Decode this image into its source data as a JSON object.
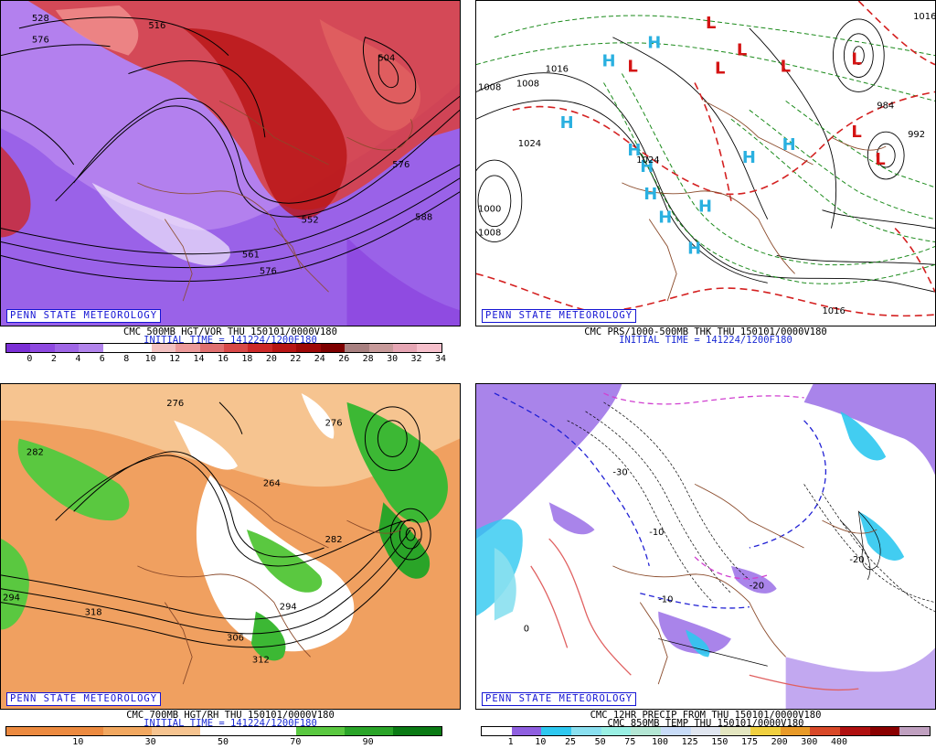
{
  "credit": "PENN STATE METEOROLOGY",
  "panels": [
    {
      "caption_1": "CMC 500MB HGT/VOR THU 150101/0000V180",
      "caption_2": "INITIAL TIME = 141224/1200F180",
      "colorbar": {
        "colors": [
          "#7b2fd6",
          "#8e49e0",
          "#9f66e6",
          "#b284ec",
          "#ffffff",
          "#ffffff",
          "#f2c1c1",
          "#ec9a9a",
          "#e07070",
          "#d84848",
          "#cc2828",
          "#b81414",
          "#9e0808",
          "#7e0000",
          "#a88080",
          "#c79a9a",
          "#e6a6b4",
          "#f6c0cc"
        ],
        "labels": [
          "0",
          "2",
          "4",
          "6",
          "8",
          "10",
          "12",
          "14",
          "16",
          "18",
          "20",
          "22",
          "24",
          "26",
          "28",
          "30",
          "32",
          "34"
        ]
      },
      "contour_labels": [
        "528",
        "576",
        "516",
        "504",
        "576",
        "552",
        "561",
        "576",
        "588"
      ]
    },
    {
      "caption_1": "CMC PRS/1000-500MB THK THU 150101/0000V180",
      "caption_2": "INITIAL TIME = 141224/1200F180",
      "pressure_centers": [
        "H",
        "H",
        "H",
        "H",
        "H",
        "H",
        "H",
        "H",
        "H",
        "H",
        "H",
        "L",
        "L",
        "L",
        "L",
        "L",
        "L",
        "L",
        "L"
      ],
      "contour_labels": [
        "1016",
        "1008",
        "1024",
        "1016",
        "1008",
        "1008",
        "1024",
        "1000",
        "984",
        "992",
        "1016"
      ]
    },
    {
      "caption_1": "CMC 700MB HGT/RH THU 150101/0000V180",
      "caption_2": "INITIAL TIME = 141224/1200F180",
      "colorbar": {
        "colors": [
          "#ec8a40",
          "#ec8a40",
          "#f2a860",
          "#f6c490",
          "#ffffff",
          "#ffffff",
          "#5ac840",
          "#2aa428",
          "#0a7a14"
        ],
        "labels": [
          "10",
          "30",
          "50",
          "70",
          "90"
        ]
      },
      "contour_labels": [
        "276",
        "276",
        "282",
        "264",
        "282",
        "294",
        "306",
        "318",
        "312",
        "294"
      ]
    },
    {
      "caption_1": "CMC 12HR PRECIP FROM THU 150101/0000V180",
      "caption_2": "CMC 850MB TEMP THU 150101/0000V180",
      "colorbar": {
        "colors": [
          "#ffffff",
          "#8f5fe0",
          "#2ec8f0",
          "#8ae0f0",
          "#9af0e4",
          "#b4e6d4",
          "#c8dcf8",
          "#e0e6f0",
          "#e4e6c0",
          "#f0d040",
          "#e89a28",
          "#d84828",
          "#b01010",
          "#8a0000",
          "#c0a0c0"
        ],
        "labels": [
          "1",
          "10",
          "25",
          "50",
          "75",
          "100",
          "125",
          "150",
          "175",
          "200",
          "300",
          "400"
        ]
      },
      "contour_labels": [
        "-10",
        "-20",
        "-30",
        "0",
        "-10",
        "-20"
      ]
    }
  ]
}
